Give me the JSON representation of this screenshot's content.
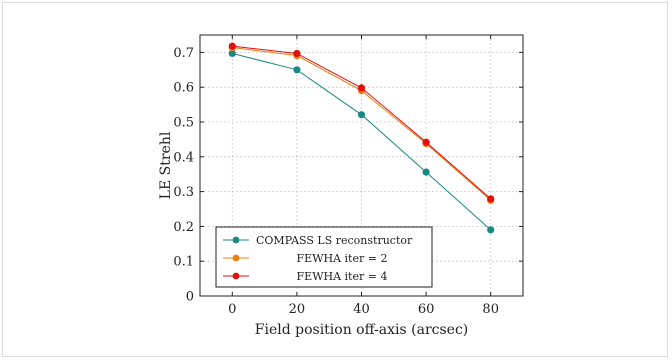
{
  "chart_data": {
    "type": "line",
    "title": "",
    "xlabel": "Field position off-axis (arcsec)",
    "ylabel": "LE Strehl",
    "x": [
      0,
      20,
      40,
      60,
      80
    ],
    "xlim": [
      -10,
      90
    ],
    "ylim": [
      0,
      0.75
    ],
    "xticks": [
      "0",
      "20",
      "40",
      "60",
      "80"
    ],
    "yticks": [
      "0",
      "0.1",
      "0.2",
      "0.3",
      "0.4",
      "0.5",
      "0.6",
      "0.7"
    ],
    "grid": true,
    "legend_position": "bottom-left",
    "series": [
      {
        "name": "COMPASS LS reconstructor",
        "color": "#1a8a80",
        "values": [
          0.697,
          0.65,
          0.521,
          0.356,
          0.19
        ]
      },
      {
        "name": "FEWHA iter = 2",
        "color": "#f07c0c",
        "values": [
          0.714,
          0.691,
          0.59,
          0.438,
          0.275
        ]
      },
      {
        "name": "FEWHA iter = 4",
        "color": "#e01010",
        "values": [
          0.718,
          0.697,
          0.598,
          0.442,
          0.279
        ]
      }
    ]
  }
}
